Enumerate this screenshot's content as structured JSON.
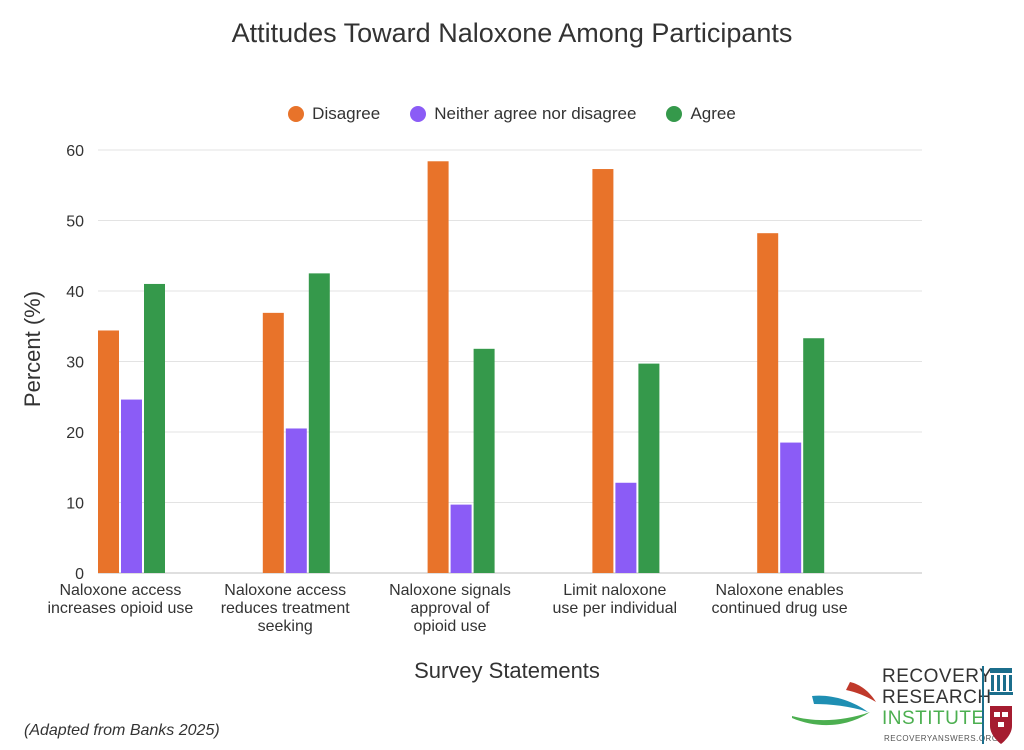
{
  "chart_data": {
    "type": "bar",
    "title": "Attitudes Toward Naloxone Among Participants",
    "xlabel": "Survey Statements",
    "ylabel": "Percent (%)",
    "ylim": [
      0,
      60
    ],
    "yticks": [
      0,
      10,
      20,
      30,
      40,
      50,
      60
    ],
    "grid": true,
    "legend_position": "top-center",
    "categories": [
      "Naloxone access\nincreases opioid use",
      "Naloxone access\nreduces treatment\nseeking",
      "Naloxone signals\napproval of\nopioid use",
      "Limit naloxone\nuse per individual",
      "Naloxone enables\ncontinued drug use"
    ],
    "series": [
      {
        "name": "Disagree",
        "color": "#E8732A",
        "values": [
          34.4,
          36.9,
          58.4,
          57.3,
          48.2
        ]
      },
      {
        "name": "Neither agree nor disagree",
        "color": "#8B5CF6",
        "values": [
          24.6,
          20.5,
          9.7,
          12.8,
          18.5
        ]
      },
      {
        "name": "Agree",
        "color": "#35994B",
        "values": [
          41.0,
          42.5,
          31.8,
          29.7,
          33.3
        ]
      }
    ]
  },
  "source_note": "(Adapted from Banks 2025)",
  "logo": {
    "line1": "RECOVERY",
    "line2": "RESEARCH",
    "line3": "INSTITUTE",
    "url": "RECOVERYANSWERS.ORG",
    "colors": {
      "red": "#C0392B",
      "blue": "#1F8FB3",
      "green": "#4CAF50",
      "navy": "#1B6E8C"
    }
  }
}
